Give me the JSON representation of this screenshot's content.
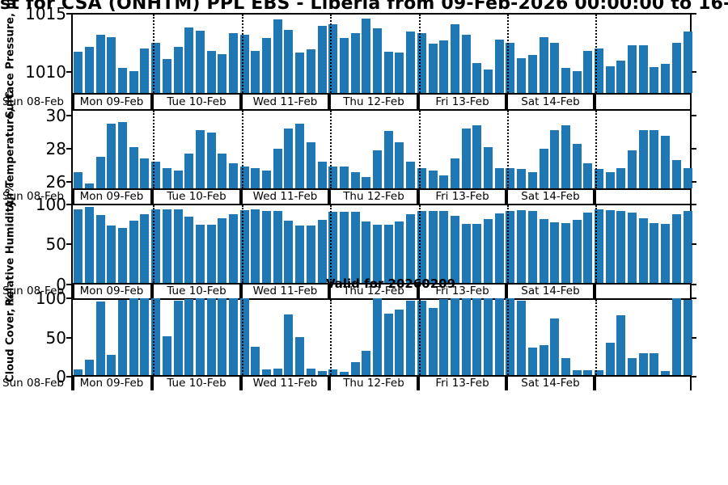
{
  "title": "st for CSA (ONHTM) PPL EBS  - Liberia from 09-Feb-2026 00:00:00 to 16-Feb-",
  "annotation": "Valid for 20260209",
  "colors": {
    "bar": "#1f77b4",
    "axis": "#000000",
    "background": "#ffffff"
  },
  "x_axis": {
    "left_label": "Sun 08-Feb",
    "day_labels": [
      "Mon 09-Feb",
      "Tue 10-Feb",
      "Wed 11-Feb",
      "Thu 12-Feb",
      "Fri 13-Feb",
      "Sat 14-Feb"
    ]
  },
  "chart_data": [
    {
      "id": "surface-pressure",
      "type": "bar",
      "ylabel": "Surface Pressure, mb",
      "yticks": [
        1015,
        1010
      ],
      "ylim": [
        1008,
        1015.1
      ],
      "bars_per_day": 8,
      "values": [
        1011.6,
        1012.0,
        1013.1,
        1012.9,
        1010.1,
        1009.8,
        1011.9,
        1012.4,
        1010.9,
        1012.0,
        1013.8,
        1013.5,
        1011.7,
        1011.4,
        1013.3,
        1013.1,
        1011.7,
        1012.8,
        1014.5,
        1013.6,
        1011.5,
        1011.8,
        1013.9,
        1014.1,
        1012.8,
        1013.3,
        1014.6,
        1013.7,
        1011.6,
        1011.5,
        1013.4,
        1013.3,
        1012.3,
        1012.6,
        1014.1,
        1013.1,
        1010.6,
        1010.0,
        1012.7,
        1012.4,
        1011.0,
        1011.3,
        1012.9,
        1012.4,
        1010.1,
        1009.8,
        1011.7,
        1011.9,
        1010.3,
        1010.8,
        1012.2,
        1012.2,
        1010.2,
        1010.5,
        1012.4,
        1013.4
      ]
    },
    {
      "id": "air-temperature",
      "type": "bar",
      "ylabel": "Air Temperature, °C",
      "yticks": [
        30,
        28,
        26
      ],
      "ylim": [
        25.5,
        30.4
      ],
      "bars_per_day": 8,
      "values": [
        26.4,
        25.7,
        27.4,
        29.5,
        29.6,
        28.0,
        27.3,
        27.1,
        26.7,
        26.5,
        27.6,
        29.1,
        28.9,
        27.6,
        27.0,
        26.8,
        26.7,
        26.5,
        27.9,
        29.2,
        29.5,
        28.3,
        27.1,
        26.8,
        26.8,
        26.4,
        26.1,
        27.8,
        29.0,
        28.3,
        27.1,
        26.7,
        26.5,
        26.2,
        27.3,
        29.2,
        29.4,
        28.0,
        26.7,
        26.7,
        26.6,
        26.4,
        27.9,
        29.1,
        29.4,
        28.2,
        27.0,
        26.6,
        26.4,
        26.7,
        27.8,
        29.1,
        29.1,
        28.7,
        27.2,
        26.7
      ]
    },
    {
      "id": "relative-humidity",
      "type": "bar",
      "ylabel": "Relative Humidity, %",
      "yticks": [
        100,
        50,
        0
      ],
      "ylim": [
        0,
        100.5
      ],
      "bars_per_day": 8,
      "values": [
        93,
        96,
        86,
        72,
        69,
        79,
        87,
        93,
        93,
        93,
        84,
        73,
        73,
        82,
        87,
        92,
        93,
        91,
        91,
        79,
        72,
        72,
        80,
        90,
        90,
        90,
        77,
        73,
        73,
        77,
        87,
        91,
        91,
        91,
        85,
        74,
        74,
        81,
        88,
        91,
        92,
        91,
        81,
        76,
        75,
        80,
        89,
        93,
        92,
        91,
        89,
        82,
        75,
        74,
        87,
        91
      ]
    },
    {
      "id": "cloud-cover",
      "type": "bar",
      "ylabel": "Cloud Cover, %",
      "yticks": [
        100,
        50,
        0
      ],
      "ylim": [
        0,
        100
      ],
      "bars_per_day": 8,
      "values": [
        5,
        18,
        96,
        25,
        98,
        100,
        100,
        100,
        50,
        97,
        99,
        100,
        100,
        100,
        100,
        100,
        36,
        5,
        7,
        79,
        48,
        7,
        3,
        5,
        2,
        15,
        30,
        100,
        80,
        85,
        97,
        97,
        87,
        99,
        100,
        100,
        100,
        100,
        100,
        100,
        97,
        35,
        38,
        73,
        21,
        4,
        4,
        4,
        41,
        78,
        20,
        27,
        27,
        3,
        100,
        98
      ]
    }
  ]
}
